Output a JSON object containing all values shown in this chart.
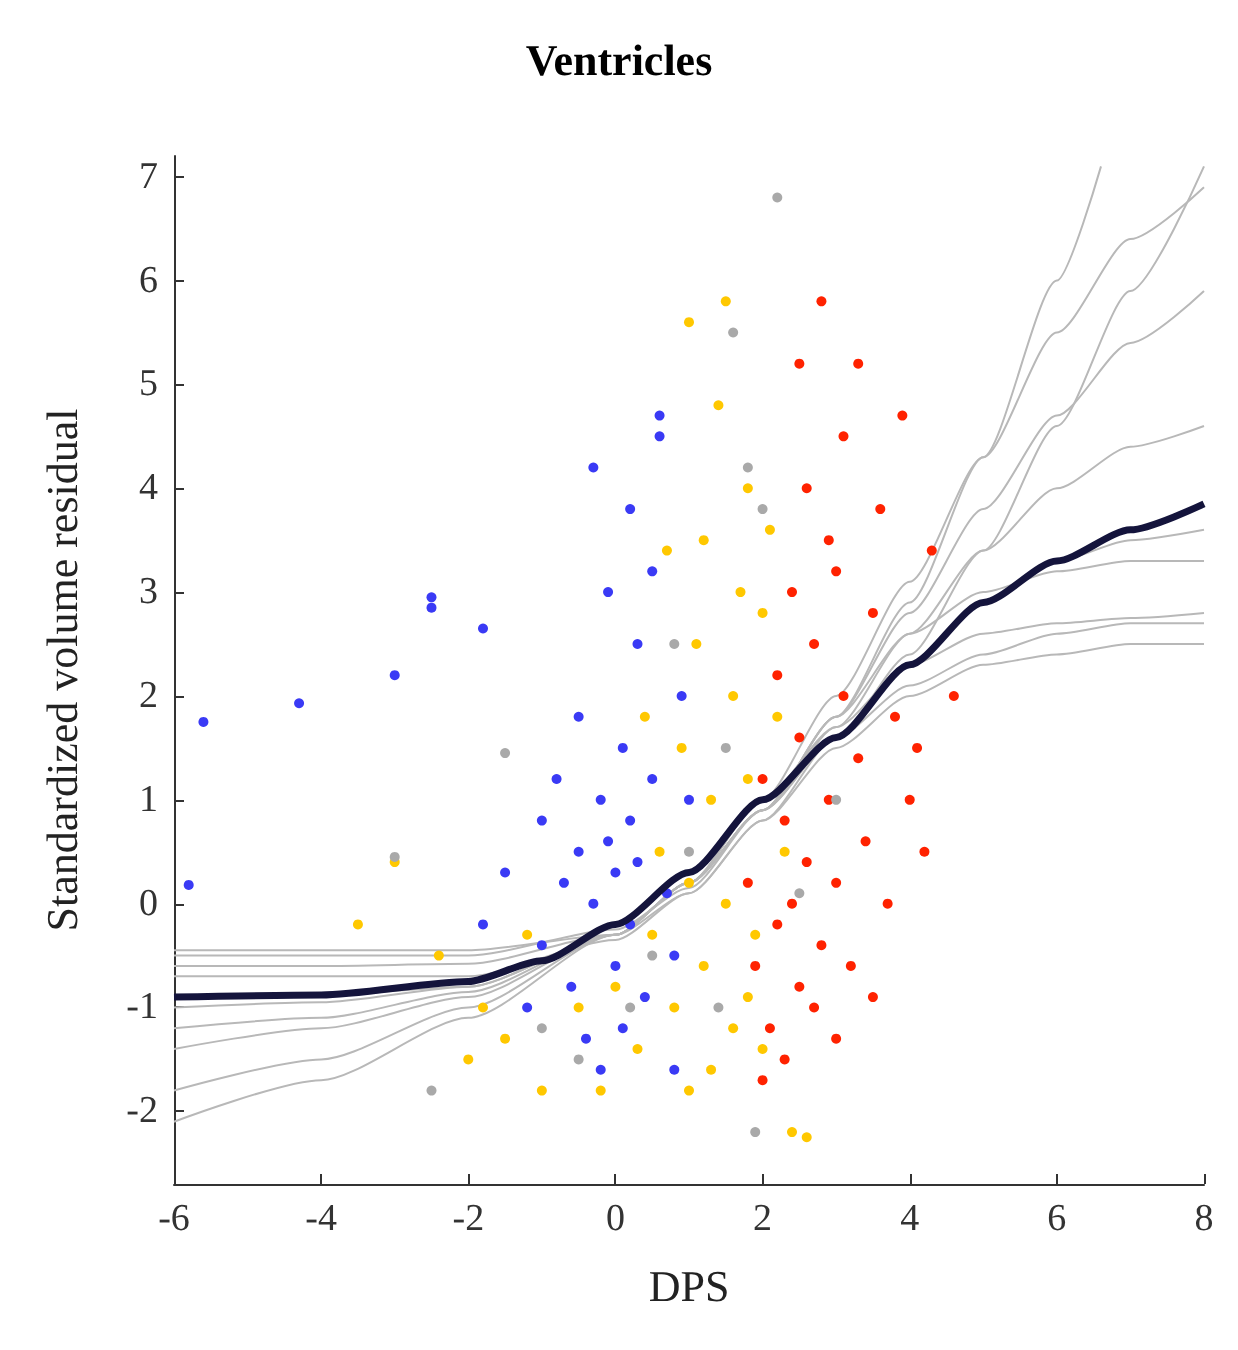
{
  "chart_data": {
    "type": "scatter",
    "title": "Ventricles",
    "xlabel": "DPS",
    "ylabel": "Standardized volume residual",
    "xlim": [
      -6,
      8
    ],
    "xticks": [
      -6,
      -4,
      -2,
      0,
      2,
      4,
      6,
      8
    ],
    "ylim": [
      -2.7,
      7.2
    ],
    "yticks": [
      -2,
      -1,
      0,
      1,
      2,
      3,
      4,
      5,
      6,
      7
    ],
    "grid": false,
    "marker": "circle",
    "series": [
      {
        "type": "line",
        "marker": "none",
        "color": "#b8b8b8",
        "x": [
          -6,
          -4,
          -2,
          0,
          1,
          2,
          3,
          4,
          5,
          6,
          7,
          8
        ],
        "values": [
          -0.45,
          -0.45,
          -0.45,
          -0.3,
          0.1,
          0.8,
          1.5,
          2.0,
          2.3,
          2.4,
          2.5,
          2.5
        ]
      },
      {
        "type": "line",
        "marker": "none",
        "color": "#b8b8b8",
        "x": [
          -6,
          -4,
          -2,
          0,
          1,
          2,
          3,
          4,
          5,
          6,
          7,
          8
        ],
        "values": [
          -0.6,
          -0.6,
          -0.58,
          -0.3,
          0.2,
          0.9,
          1.6,
          2.1,
          2.4,
          2.6,
          2.7,
          2.7
        ]
      },
      {
        "type": "line",
        "marker": "none",
        "color": "#b8b8b8",
        "x": [
          -6,
          -4,
          -2,
          0,
          1,
          2,
          3,
          4,
          5,
          6,
          7,
          8
        ],
        "values": [
          -1.0,
          -0.95,
          -0.8,
          -0.3,
          0.2,
          0.9,
          1.6,
          2.3,
          2.9,
          3.3,
          3.5,
          3.6
        ]
      },
      {
        "type": "line",
        "marker": "none",
        "color": "#b8b8b8",
        "x": [
          -6,
          -4,
          -2,
          0,
          1,
          2,
          3,
          4,
          5,
          6,
          7,
          8
        ],
        "values": [
          -1.4,
          -1.2,
          -0.9,
          -0.3,
          0.2,
          0.9,
          1.7,
          2.6,
          3.4,
          4.0,
          4.4,
          4.6
        ]
      },
      {
        "type": "line",
        "marker": "none",
        "color": "#b8b8b8",
        "x": [
          -6,
          -4,
          -2,
          0,
          1,
          2,
          3,
          4,
          5,
          6,
          7,
          8
        ],
        "values": [
          -1.8,
          -1.5,
          -1.0,
          -0.3,
          0.2,
          0.9,
          1.8,
          2.8,
          3.8,
          4.7,
          5.4,
          5.9
        ]
      },
      {
        "type": "line",
        "marker": "none",
        "color": "#b8b8b8",
        "x": [
          -6,
          -4,
          -2,
          0,
          1,
          2,
          3,
          4,
          5,
          6,
          7,
          8
        ],
        "values": [
          -2.1,
          -1.7,
          -1.1,
          -0.3,
          0.2,
          1.0,
          2.0,
          3.1,
          4.3,
          5.5,
          6.4,
          6.9
        ]
      },
      {
        "type": "line",
        "marker": "none",
        "color": "#b8b8b8",
        "x": [
          -6,
          -4,
          -2,
          0,
          1,
          2,
          3,
          4,
          5,
          6,
          7,
          8
        ],
        "values": [
          -0.7,
          -0.7,
          -0.7,
          -0.35,
          0.1,
          0.8,
          1.6,
          2.4,
          3.4,
          4.6,
          5.9,
          7.1
        ]
      },
      {
        "type": "line",
        "marker": "none",
        "color": "#b8b8b8",
        "x": [
          -6,
          -4,
          -2,
          0,
          1,
          2,
          3,
          4,
          5,
          6,
          6.6
        ],
        "values": [
          -0.9,
          -0.88,
          -0.8,
          -0.3,
          0.2,
          0.9,
          1.8,
          2.9,
          4.3,
          6.0,
          7.1
        ]
      },
      {
        "type": "line",
        "marker": "none",
        "color": "#b8b8b8",
        "x": [
          -6,
          -4,
          -2,
          0,
          1,
          2,
          3,
          4,
          5,
          6,
          7,
          8
        ],
        "values": [
          -0.5,
          -0.5,
          -0.5,
          -0.25,
          0.15,
          0.9,
          1.8,
          2.6,
          3.0,
          3.2,
          3.3,
          3.3
        ]
      },
      {
        "type": "line",
        "marker": "none",
        "color": "#b8b8b8",
        "x": [
          -6,
          -4,
          -2,
          0,
          1,
          2,
          3,
          4,
          5,
          6,
          7,
          8
        ],
        "values": [
          -1.2,
          -1.1,
          -0.85,
          -0.3,
          0.2,
          1.0,
          1.7,
          2.3,
          2.6,
          2.7,
          2.75,
          2.8
        ]
      },
      {
        "color": "#3a3af5",
        "x": [
          -5.8,
          -5.6,
          -4.3,
          -3,
          -2.5,
          -2.5,
          -1.8,
          -1.8,
          -1.5,
          -1.2,
          -1,
          -1,
          -0.8,
          -0.7,
          -0.6,
          -0.5,
          -0.5,
          -0.4,
          -0.3,
          -0.2,
          -0.1,
          0,
          0,
          0.1,
          0.1,
          0.2,
          0.2,
          0.3,
          0.3,
          0.4,
          0.5,
          0.5,
          0.6,
          0.7,
          0.8,
          0.9,
          1,
          0.2,
          -0.3,
          -0.1,
          0.8,
          -0.2,
          0.6
        ],
        "values": [
          0.18,
          1.75,
          1.93,
          2.2,
          2.95,
          2.85,
          2.65,
          -0.2,
          0.3,
          -1.0,
          0.8,
          -0.4,
          1.2,
          0.2,
          -0.8,
          1.8,
          0.5,
          -1.3,
          0.0,
          1.0,
          0.6,
          -0.6,
          0.3,
          1.5,
          -1.2,
          0.8,
          -0.2,
          2.5,
          0.4,
          -0.9,
          1.2,
          3.2,
          4.5,
          0.1,
          -0.5,
          2.0,
          1.0,
          3.8,
          4.2,
          3.0,
          -1.6,
          -1.6,
          4.7
        ]
      },
      {
        "color": "#ffc800",
        "x": [
          -3.5,
          -3,
          -2.4,
          -2,
          -1.8,
          -1.5,
          -1.2,
          -1,
          -0.5,
          -0.2,
          0,
          0.3,
          0.5,
          0.6,
          0.8,
          0.9,
          1,
          1,
          1.1,
          1.2,
          1.2,
          1.3,
          1.4,
          1.5,
          1.5,
          1.6,
          1.6,
          1.7,
          1.8,
          1.8,
          1.9,
          2,
          2,
          2.2,
          2.3,
          2.4,
          2.6,
          1.0,
          0.7,
          1.8,
          0.4,
          2.1,
          1.3
        ],
        "values": [
          -0.2,
          0.4,
          -0.5,
          -1.5,
          -1.0,
          -1.3,
          -0.3,
          -1.8,
          -1.0,
          -1.8,
          -0.8,
          -1.4,
          -0.3,
          0.5,
          -1.0,
          1.5,
          0.2,
          -1.8,
          2.5,
          -0.6,
          3.5,
          1.0,
          4.8,
          5.8,
          0.0,
          2.0,
          -1.2,
          3.0,
          1.2,
          4.0,
          -0.3,
          2.8,
          -1.4,
          1.8,
          0.5,
          -2.2,
          -2.25,
          5.6,
          3.4,
          -0.9,
          1.8,
          3.6,
          -1.6
        ]
      },
      {
        "color": "#ff2200",
        "x": [
          1.8,
          1.9,
          2,
          2.1,
          2.2,
          2.2,
          2.3,
          2.3,
          2.4,
          2.4,
          2.5,
          2.5,
          2.6,
          2.6,
          2.7,
          2.7,
          2.8,
          2.8,
          2.9,
          2.9,
          3,
          3,
          3.1,
          3.1,
          3.2,
          3.3,
          3.3,
          3.4,
          3.5,
          3.5,
          3.6,
          3.7,
          3.8,
          3.9,
          4,
          4.1,
          4.3,
          4.6,
          4.2,
          2.5,
          3.0,
          2.0
        ],
        "values": [
          0.2,
          -0.6,
          1.2,
          -1.2,
          2.2,
          -0.2,
          0.8,
          -1.5,
          3.0,
          0.0,
          -0.8,
          1.6,
          4.0,
          0.4,
          -1.0,
          2.5,
          5.8,
          -0.4,
          1.0,
          3.5,
          0.2,
          -1.3,
          2.0,
          4.5,
          -0.6,
          1.4,
          5.2,
          0.6,
          2.8,
          -0.9,
          3.8,
          0.0,
          1.8,
          4.7,
          1.0,
          1.5,
          3.4,
          2.0,
          0.5,
          5.2,
          3.2,
          -1.7
        ]
      },
      {
        "color": "#a9a9a9",
        "x": [
          2.2,
          1.6,
          -1.5,
          -2.5,
          -3,
          1.9,
          0.5,
          1,
          1.5,
          2,
          1.4,
          0.2,
          1.8,
          -1,
          0.8,
          2.5,
          3,
          -0.5
        ],
        "values": [
          6.8,
          5.5,
          1.45,
          -1.8,
          0.45,
          -2.2,
          -0.5,
          0.5,
          1.5,
          3.8,
          -1.0,
          -1.0,
          4.2,
          -1.2,
          2.5,
          0.1,
          1.0,
          -1.5
        ]
      },
      {
        "type": "line",
        "marker": "none",
        "color": "#14143c",
        "x": [
          -6,
          -4,
          -2,
          -1,
          0,
          1,
          2,
          3,
          4,
          5,
          6,
          7,
          8
        ],
        "values": [
          -0.9,
          -0.88,
          -0.75,
          -0.55,
          -0.2,
          0.3,
          1.0,
          1.6,
          2.3,
          2.9,
          3.3,
          3.6,
          3.85
        ]
      }
    ]
  }
}
